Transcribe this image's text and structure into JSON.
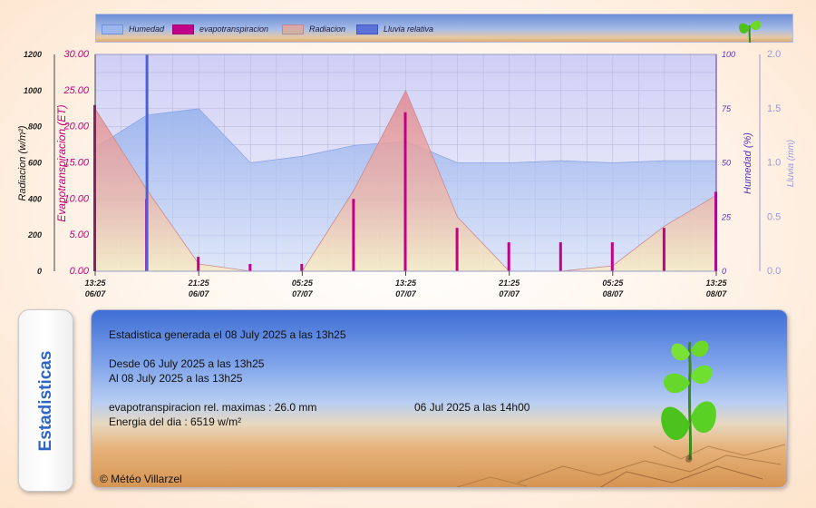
{
  "legend": [
    {
      "label": "Humedad",
      "color": "#9db6ee",
      "border": "#6f8fd8"
    },
    {
      "label": "evapotranspiracion",
      "color": "#c20088",
      "border": "#a00070"
    },
    {
      "label": "Radiacion",
      "color": "#e3a3a8",
      "border": "#b98a90"
    },
    {
      "label": "Lluvia relativa",
      "color": "#5b73d8",
      "border": "#3f55c0"
    }
  ],
  "axes": {
    "radiation_label": "Radiacion (w/m²)",
    "et_label": "Evapotranspiracion (ET)",
    "humidity_label": "Humedad (%)",
    "rain_label": "Lluvia (mm)",
    "radiation_ticks": [
      "1200",
      "1000",
      "800",
      "600",
      "400",
      "200",
      "0"
    ],
    "et_ticks": [
      "30.00",
      "25.00",
      "20.00",
      "15.00",
      "10.00",
      "5.00",
      "0.00"
    ],
    "humidity_ticks": [
      "100",
      "75",
      "50",
      "25",
      "0"
    ],
    "rain_ticks": [
      "2.0",
      "1.5",
      "1.0",
      "0.5",
      "0.0"
    ],
    "time_ticks": [
      {
        "time": "13:25",
        "date": "06/07"
      },
      {
        "time": "21:25",
        "date": "06/07"
      },
      {
        "time": "05:25",
        "date": "07/07"
      },
      {
        "time": "13:25",
        "date": "07/07"
      },
      {
        "time": "21:25",
        "date": "07/07"
      },
      {
        "time": "05:25",
        "date": "08/07"
      },
      {
        "time": "13:25",
        "date": "08/07"
      }
    ]
  },
  "colors": {
    "humidity": "#9db6ee",
    "et": "#c20088",
    "radiation": "#e3a3a8",
    "rain": "#4a5fd8",
    "grid": "#b9b9dc",
    "et_axis": "#c0007a",
    "humidity_axis": "#5a32b8",
    "rain_axis": "#9a9ad8"
  },
  "chart_data": {
    "type": "area",
    "x": [
      "06/07 13:25",
      "06/07 17:25",
      "06/07 21:25",
      "07/07 01:25",
      "07/07 05:25",
      "07/07 09:25",
      "07/07 13:25",
      "07/07 17:25",
      "07/07 21:25",
      "08/07 01:25",
      "08/07 05:25",
      "08/07 09:25",
      "08/07 13:25"
    ],
    "ylim_radiation": [
      0,
      1200
    ],
    "ylim_et": [
      0,
      30
    ],
    "ylim_humidity": [
      0,
      100
    ],
    "ylim_rain": [
      0,
      2
    ],
    "grid": true,
    "series": [
      {
        "name": "Humedad",
        "axis": "humidity",
        "values": [
          57,
          72,
          75,
          50,
          53,
          58,
          60,
          50,
          50,
          51,
          50,
          51,
          51
        ]
      },
      {
        "name": "Radiacion",
        "axis": "radiation",
        "values": [
          900,
          450,
          40,
          0,
          0,
          450,
          1000,
          300,
          0,
          0,
          30,
          250,
          420
        ]
      },
      {
        "name": "evapotranspiracion",
        "axis": "et",
        "values": [
          23,
          10,
          2,
          1,
          1,
          10,
          22,
          6,
          4,
          4,
          4,
          6,
          11
        ]
      },
      {
        "name": "Lluvia relativa",
        "axis": "rain",
        "values": [
          0,
          2.0,
          0,
          0,
          0,
          0,
          0,
          0,
          0,
          0,
          0,
          0,
          0
        ]
      }
    ]
  },
  "stats": {
    "tab_label": "Estadisticas",
    "generated": "Estadistica generada el 08 July 2025 a las 13h25",
    "from": "Desde 06 July 2025 a las 13h25",
    "to": "Al 08 July 2025 a las 13h25",
    "et_max": "evapotranspiracion rel. maximas : 26.0 mm",
    "et_max_time": "06 Jul 2025 a las 14h00",
    "energy": "Energia del dia : 6519 w/m²",
    "copyright": "© Météo Villarzel"
  }
}
